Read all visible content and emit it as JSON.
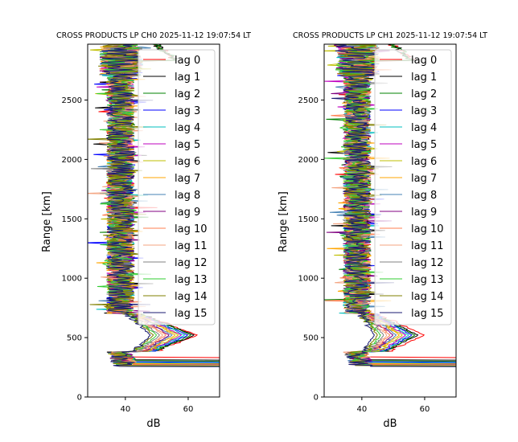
{
  "chart_data": [
    {
      "type": "line",
      "title": "CROSS PRODUCTS LP CH0 2025-11-12 19:07:54 LT",
      "xlabel": "dB",
      "ylabel": "Range [km]",
      "xlim": [
        28,
        70
      ],
      "ylim": [
        0,
        2970
      ],
      "xticks": [
        40,
        60
      ],
      "yticks": [
        0,
        500,
        1000,
        1500,
        2000,
        2500
      ],
      "legend_position": "top-right",
      "series_profile": {
        "description": "Approximate per-lag profiles: noise band near x_noise dB above ~650 km, bulge to peak dB near 500 km, strong sharp return at the low-range edge",
        "x_noise_db": 38,
        "bulge_peak_db": [
          63,
          62,
          61,
          60,
          59,
          58,
          57,
          56,
          55,
          54,
          53,
          52,
          51,
          50,
          49,
          48
        ],
        "bottom_range_km": [
          330,
          310,
          300,
          290,
          285,
          280,
          278,
          275,
          272,
          270,
          268,
          265,
          262,
          260,
          258,
          255
        ]
      },
      "legend": [
        "lag 0",
        "lag 1",
        "lag 2",
        "lag 3",
        "lag 4",
        "lag 5",
        "lag 6",
        "lag 7",
        "lag 8",
        "lag 9",
        "lag 10",
        "lag 11",
        "lag 12",
        "lag 13",
        "lag 14",
        "lag 15"
      ]
    },
    {
      "type": "line",
      "title": "CROSS PRODUCTS LP CH1 2025-11-12 19:07:54 LT",
      "xlabel": "dB",
      "ylabel": "Range [km]",
      "xlim": [
        28,
        70
      ],
      "ylim": [
        0,
        2970
      ],
      "xticks": [
        40,
        60
      ],
      "yticks": [
        0,
        500,
        1000,
        1500,
        2000,
        2500
      ],
      "legend_position": "top-right",
      "series_profile": {
        "description": "Approximate per-lag profiles: noise band near x_noise dB above ~650 km, bulge to peak dB near 500 km, strong sharp return at the low-range edge",
        "x_noise_db": 38,
        "bulge_peak_db": [
          60,
          58,
          57,
          56,
          55,
          54,
          53,
          52,
          51,
          50,
          49,
          48,
          47,
          46,
          45,
          44
        ],
        "bottom_range_km": [
          330,
          310,
          300,
          290,
          285,
          280,
          278,
          275,
          272,
          270,
          268,
          265,
          262,
          260,
          258,
          255
        ]
      },
      "legend": [
        "lag 0",
        "lag 1",
        "lag 2",
        "lag 3",
        "lag 4",
        "lag 5",
        "lag 6",
        "lag 7",
        "lag 8",
        "lag 9",
        "lag 10",
        "lag 11",
        "lag 12",
        "lag 13",
        "lag 14",
        "lag 15"
      ]
    }
  ],
  "series_colors": [
    "#ff0000",
    "#000000",
    "#008000",
    "#0000ff",
    "#00bfbf",
    "#bf00bf",
    "#bfbf00",
    "#ffa500",
    "#4682b4",
    "#800080",
    "#ff7f50",
    "#f4a582",
    "#808080",
    "#32cd32",
    "#808000",
    "#191970"
  ]
}
